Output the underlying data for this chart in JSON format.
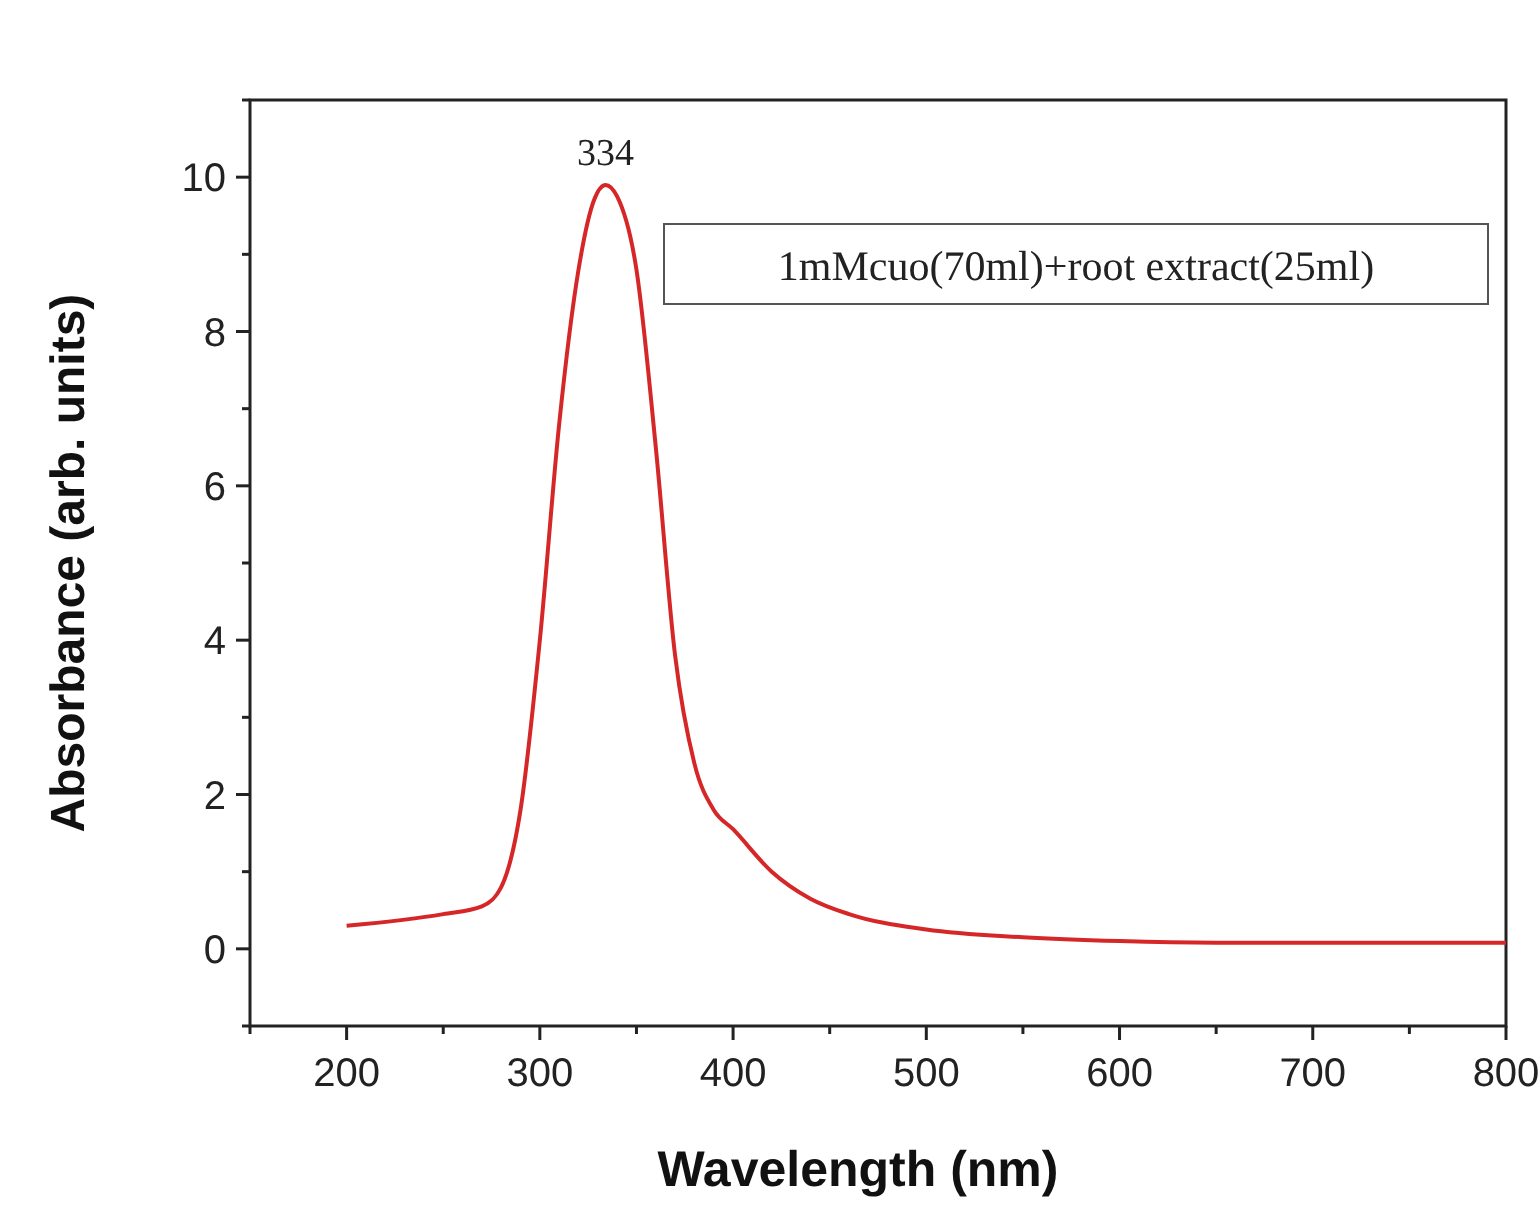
{
  "chart_data": {
    "type": "line",
    "xlabel": "Wavelength (nm)",
    "ylabel": "Absorbance (arb. units)",
    "x": [
      200,
      250,
      270,
      280,
      290,
      300,
      310,
      320,
      328,
      334,
      340,
      350,
      360,
      370,
      380,
      390,
      400,
      420,
      440,
      460,
      500,
      550,
      600,
      650,
      700,
      800
    ],
    "series": [
      {
        "color": "#d62728",
        "values": [
          0.3,
          0.45,
          0.55,
          0.8,
          1.8,
          4,
          6.8,
          8.8,
          9.7,
          9.9,
          9.75,
          8.8,
          6.5,
          3.8,
          2.4,
          1.8,
          1.55,
          1.0,
          0.65,
          0.45,
          0.25,
          0.15,
          0.1,
          0.08,
          0.08,
          0.08
        ]
      }
    ],
    "xlim": [
      150,
      800
    ],
    "ylim": [
      -1,
      11
    ],
    "xticks": [
      {
        "value": 150,
        "label": null
      },
      200,
      {
        "value": 250,
        "label": null
      },
      300,
      {
        "value": 350,
        "label": null
      },
      400,
      {
        "value": 450,
        "label": null
      },
      500,
      {
        "value": 550,
        "label": null
      },
      600,
      {
        "value": 650,
        "label": null
      },
      700,
      {
        "value": 750,
        "label": null
      },
      800
    ],
    "yticks": [
      {
        "value": -1,
        "label": null
      },
      0,
      {
        "value": 1,
        "label": null
      },
      2,
      {
        "value": 3,
        "label": null
      },
      4,
      {
        "value": 5,
        "label": null
      },
      6,
      {
        "value": 7,
        "label": null
      },
      8,
      {
        "value": 9,
        "label": null
      },
      10,
      {
        "value": 11,
        "label": null
      }
    ],
    "annotations": [
      {
        "text": "334",
        "x": 334,
        "y": 9.9
      },
      "1mMcuo(70ml)+root extract(25ml)"
    ],
    "grid": false,
    "marker": "none",
    "line_style": "solid"
  }
}
